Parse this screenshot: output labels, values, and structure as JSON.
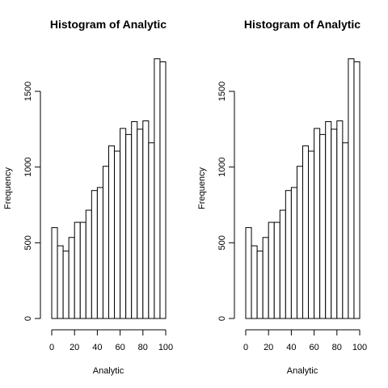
{
  "chart_data": [
    {
      "type": "bar",
      "title": "Histogram of Analytic",
      "xlabel": "Analytic",
      "ylabel": "Frequency",
      "bin_width": 5,
      "x_bins_start": [
        0,
        5,
        10,
        15,
        20,
        25,
        30,
        35,
        40,
        45,
        50,
        55,
        60,
        65,
        70,
        75,
        80,
        85,
        90,
        95
      ],
      "values": [
        600,
        480,
        445,
        535,
        635,
        635,
        715,
        845,
        865,
        1005,
        1140,
        1105,
        1255,
        1215,
        1300,
        1250,
        1305,
        1160,
        1715,
        1695
      ],
      "xlim": [
        0,
        100
      ],
      "ylim": [
        0,
        1715
      ],
      "x_ticks": [
        0,
        20,
        40,
        60,
        80,
        100
      ],
      "y_ticks": [
        0,
        500,
        1000,
        1500
      ],
      "grid": false
    },
    {
      "type": "bar",
      "title": "Histogram of Analytic",
      "xlabel": "Analytic",
      "ylabel": "Frequency",
      "bin_width": 5,
      "x_bins_start": [
        0,
        5,
        10,
        15,
        20,
        25,
        30,
        35,
        40,
        45,
        50,
        55,
        60,
        65,
        70,
        75,
        80,
        85,
        90,
        95
      ],
      "values": [
        600,
        480,
        445,
        535,
        635,
        635,
        715,
        845,
        865,
        1005,
        1140,
        1105,
        1255,
        1215,
        1300,
        1250,
        1305,
        1160,
        1715,
        1695
      ],
      "xlim": [
        0,
        100
      ],
      "ylim": [
        0,
        1715
      ],
      "x_ticks": [
        0,
        20,
        40,
        60,
        80,
        100
      ],
      "y_ticks": [
        0,
        500,
        1000,
        1500
      ],
      "grid": false
    }
  ]
}
